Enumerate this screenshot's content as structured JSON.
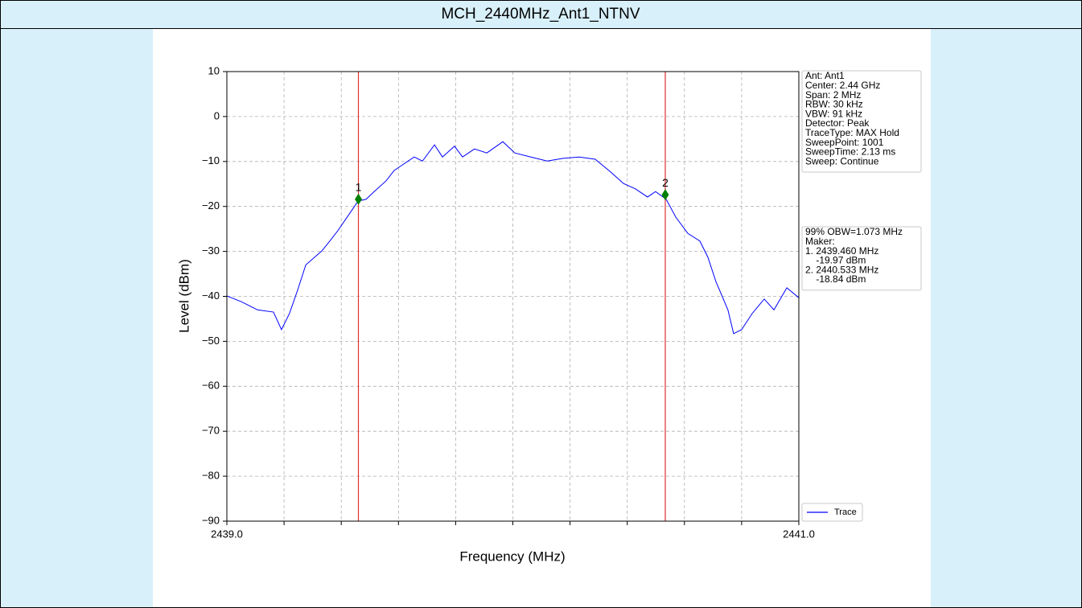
{
  "chart_data": {
    "type": "line",
    "title": "MCH_2440MHz_Ant1_NTNV",
    "xlabel": "Frequency (MHz)",
    "ylabel": "Level (dBm)",
    "xlim": [
      2439,
      2441
    ],
    "ylim": [
      -90,
      10
    ],
    "xticks": [
      {
        "value": 2439,
        "label": "2439.0"
      },
      {
        "value": 2441,
        "label": "2441.0"
      }
    ],
    "xgrid": [
      2439.2,
      2439.4,
      2439.6,
      2439.8,
      2440.0,
      2440.2,
      2440.4,
      2440.6,
      2440.8
    ],
    "yticks": [
      10,
      0,
      {
        "value": -10,
        "label": "−10"
      },
      {
        "value": -20,
        "label": "−20"
      },
      {
        "value": -30,
        "label": "−30"
      },
      {
        "value": -40,
        "label": "−40"
      },
      {
        "value": -50,
        "label": "−50"
      },
      {
        "value": -60,
        "label": "−60"
      },
      {
        "value": -70,
        "label": "−70"
      },
      {
        "value": -80,
        "label": "−80"
      },
      {
        "value": -90,
        "label": "−90"
      }
    ],
    "grid": true,
    "legend": "lower right",
    "x": [
      2439.0,
      2439.051,
      2439.107,
      2439.163,
      2439.191,
      2439.219,
      2439.248,
      2439.276,
      2439.332,
      2439.36,
      2439.388,
      2439.43,
      2439.459,
      2439.487,
      2439.515,
      2439.557,
      2439.585,
      2439.613,
      2439.655,
      2439.684,
      2439.726,
      2439.754,
      2439.796,
      2439.824,
      2439.866,
      2439.909,
      2439.965,
      2440.007,
      2440.063,
      2440.12,
      2440.176,
      2440.232,
      2440.288,
      2440.345,
      2440.387,
      2440.429,
      2440.471,
      2440.499,
      2440.536,
      2440.57,
      2440.612,
      2440.654,
      2440.682,
      2440.71,
      2440.752,
      2440.772,
      2440.8,
      2440.837,
      2440.879,
      2440.913,
      2440.958,
      2441.0
    ],
    "series": [
      {
        "name": "Trace",
        "color": "#0000ff",
        "values": [
          -39.9,
          -41.2,
          -43,
          -43.5,
          -47.4,
          -43.8,
          -38.5,
          -33,
          -29.9,
          -27.7,
          -25.4,
          -21.5,
          -18.8,
          -18.4,
          -16.7,
          -14.3,
          -12,
          -10.8,
          -9,
          -9.9,
          -6.3,
          -9,
          -6.6,
          -9,
          -7.2,
          -8.1,
          -5.6,
          -8.1,
          -9,
          -9.9,
          -9.3,
          -9,
          -9.5,
          -12.5,
          -14.9,
          -16.1,
          -17.9,
          -16.7,
          -18.4,
          -22.4,
          -26,
          -27.7,
          -31.3,
          -36.7,
          -43,
          -48.3,
          -47.4,
          -43.8,
          -40.6,
          -43,
          -38.1,
          -40.3
        ]
      }
    ],
    "markers": [
      {
        "label": "1",
        "x": 2439.46,
        "y": -18.4,
        "color": "#008000",
        "line_color": "#e03030"
      },
      {
        "label": "2",
        "x": 2440.533,
        "y": -17.4,
        "color": "#008000",
        "line_color": "#e03030"
      }
    ],
    "info_box": [
      "Ant: Ant1",
      "Center: 2.44 GHz",
      "Span: 2 MHz",
      "RBW: 30 kHz",
      "VBW: 91 kHz",
      "Detector: Peak",
      "TraceType: MAX Hold",
      "SweepPoint: 1001",
      "SweepTime: 2.13 ms",
      "Sweep: Continue"
    ],
    "obw_box": [
      "99% OBW=1.073 MHz",
      "Maker:",
      "1. 2439.460 MHz",
      "    -19.97 dBm",
      "2. 2440.533 MHz",
      "    -18.84 dBm"
    ]
  }
}
